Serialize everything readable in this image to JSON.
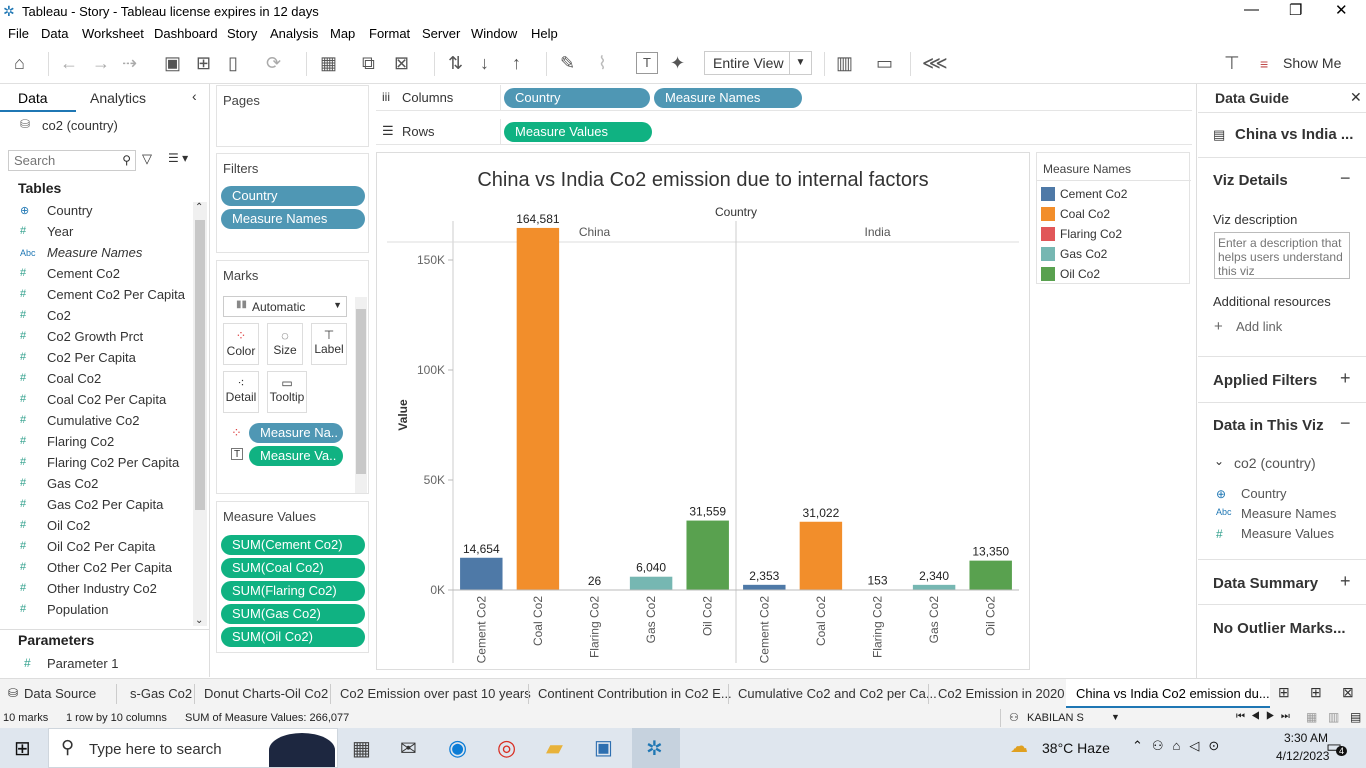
{
  "window": {
    "title": "Tableau - Story - Tableau license expires in 12 days"
  },
  "menu": [
    "File",
    "Data",
    "Worksheet",
    "Dashboard",
    "Story",
    "Analysis",
    "Map",
    "Format",
    "Server",
    "Window",
    "Help"
  ],
  "toolbar": {
    "fit": "Entire View",
    "show_me": "Show Me"
  },
  "left": {
    "tab_data": "Data",
    "tab_analytics": "Analytics",
    "datasource": "co2 (country)",
    "search_placeholder": "Search",
    "tables_label": "Tables",
    "fields": [
      {
        "icon": "⊕",
        "name": "Country"
      },
      {
        "icon": "#",
        "name": "Year"
      },
      {
        "icon": "Abc",
        "name": "Measure Names"
      },
      {
        "icon": "#",
        "name": "Cement Co2"
      },
      {
        "icon": "#",
        "name": "Cement Co2 Per Capita"
      },
      {
        "icon": "#",
        "name": "Co2"
      },
      {
        "icon": "#",
        "name": "Co2 Growth Prct"
      },
      {
        "icon": "#",
        "name": "Co2 Per Capita"
      },
      {
        "icon": "#",
        "name": "Coal Co2"
      },
      {
        "icon": "#",
        "name": "Coal Co2 Per Capita"
      },
      {
        "icon": "#",
        "name": "Cumulative Co2"
      },
      {
        "icon": "#",
        "name": "Flaring Co2"
      },
      {
        "icon": "#",
        "name": "Flaring Co2 Per Capita"
      },
      {
        "icon": "#",
        "name": "Gas Co2"
      },
      {
        "icon": "#",
        "name": "Gas Co2 Per Capita"
      },
      {
        "icon": "#",
        "name": "Oil Co2"
      },
      {
        "icon": "#",
        "name": "Oil Co2 Per Capita"
      },
      {
        "icon": "#",
        "name": "Other Co2 Per Capita"
      },
      {
        "icon": "#",
        "name": "Other Industry Co2"
      },
      {
        "icon": "#",
        "name": "Population"
      }
    ],
    "parameters_label": "Parameters",
    "parameter": "Parameter 1"
  },
  "shelves": {
    "pages": "Pages",
    "filters": "Filters",
    "filter_pills": [
      "Country",
      "Measure Names"
    ],
    "marks": "Marks",
    "mark_type": "Automatic",
    "mark_buttons": [
      "Color",
      "Size",
      "Label",
      "Detail",
      "Tooltip"
    ],
    "mark_pills": [
      "Measure Na..",
      "Measure Va.."
    ],
    "measure_values": "Measure Values",
    "mv_pills": [
      "SUM(Cement Co2)",
      "SUM(Coal Co2)",
      "SUM(Flaring Co2)",
      "SUM(Gas Co2)",
      "SUM(Oil Co2)"
    ],
    "columns": "Columns",
    "columns_pills": [
      "Country",
      "Measure Names"
    ],
    "rows": "Rows",
    "rows_pills": [
      "Measure Values"
    ]
  },
  "legend": {
    "title": "Measure Names",
    "items": [
      {
        "name": "Cement Co2",
        "color": "#4e79a7"
      },
      {
        "name": "Coal Co2",
        "color": "#f28e2b"
      },
      {
        "name": "Flaring Co2",
        "color": "#e15759"
      },
      {
        "name": "Gas Co2",
        "color": "#76b7b2"
      },
      {
        "name": "Oil Co2",
        "color": "#59a14f"
      }
    ]
  },
  "chart_data": {
    "type": "bar",
    "title": "China vs India Co2 emission due to internal factors",
    "column_header": "Country",
    "ylabel": "Value",
    "ylim": [
      0,
      175000
    ],
    "yticks": [
      {
        "v": 0,
        "label": "0K"
      },
      {
        "v": 50000,
        "label": "50K"
      },
      {
        "v": 100000,
        "label": "100K"
      },
      {
        "v": 150000,
        "label": "150K"
      }
    ],
    "categories": [
      "Cement Co2",
      "Coal Co2",
      "Flaring Co2",
      "Gas Co2",
      "Oil Co2"
    ],
    "colors": [
      "#4e79a7",
      "#f28e2b",
      "#e15759",
      "#76b7b2",
      "#59a14f"
    ],
    "groups": [
      {
        "name": "China",
        "values": [
          14654,
          164581,
          26,
          6040,
          31559
        ],
        "labels": [
          "14,654",
          "164,581",
          "26",
          "6,040",
          "31,559"
        ]
      },
      {
        "name": "India",
        "values": [
          2353,
          31022,
          153,
          2340,
          13350
        ],
        "labels": [
          "2,353",
          "31,022",
          "153",
          "2,340",
          "13,350"
        ]
      }
    ]
  },
  "guide": {
    "title": "Data Guide",
    "sheet": "China vs India ...",
    "viz_details": "Viz Details",
    "viz_desc_label": "Viz description",
    "viz_desc_placeholder": "Enter a description that helps users understand this viz",
    "additional": "Additional resources",
    "add_link": "Add link",
    "applied_filters": "Applied Filters",
    "data_in_viz": "Data in This Viz",
    "ds": "co2 (country)",
    "ds_fields": [
      {
        "icon": "⊕",
        "name": "Country"
      },
      {
        "icon": "Abc",
        "name": "Measure Names"
      },
      {
        "icon": "#",
        "name": "Measure Values"
      }
    ],
    "data_summary": "Data Summary",
    "no_outlier": "No Outlier Marks..."
  },
  "sheet_tabs": [
    "Data Source",
    "s-Gas Co2",
    "Donut Charts-Oil Co2",
    "Co2 Emission over past 10 years",
    "Continent Contribution in Co2 E...",
    "Cumulative Co2 and Co2 per Ca...",
    "Co2 Emission in 2020",
    "China vs India Co2 emission du..."
  ],
  "status": {
    "marks": "10 marks",
    "rows": "1 row by 10 columns",
    "sum": "SUM of Measure Values: 266,077",
    "user": "KABILAN S"
  },
  "taskbar": {
    "search": "Type here to search",
    "weather": "38°C  Haze",
    "time": "3:30 AM",
    "date": "4/12/2023",
    "badge": "4"
  }
}
